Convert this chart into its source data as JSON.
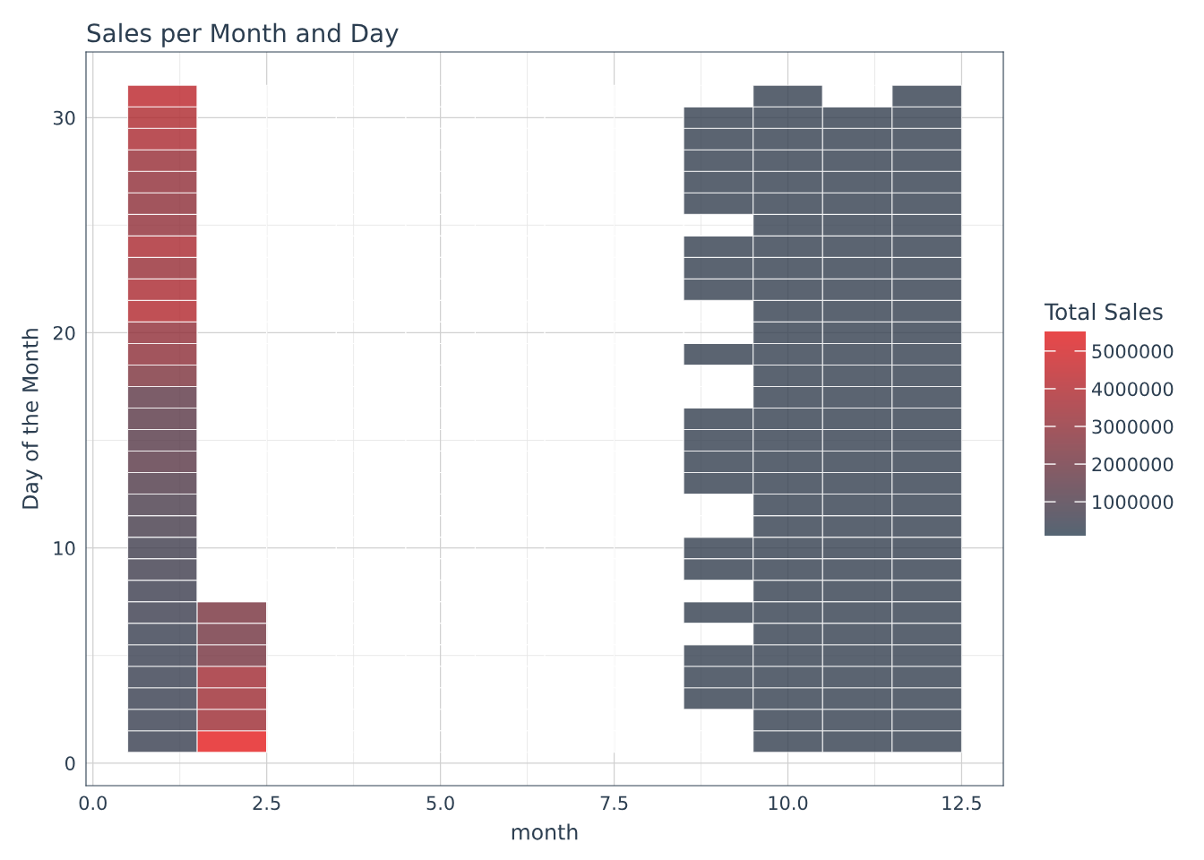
{
  "chart_data": {
    "type": "heatmap",
    "title": "Sales per Month and Day",
    "xlabel": "month",
    "ylabel": "Day of the Month",
    "clabel": "Total Sales",
    "x": [
      1,
      2,
      3,
      4,
      5,
      6,
      7,
      8,
      9,
      10,
      11,
      12
    ],
    "y": [
      31,
      30,
      29,
      28,
      27,
      26,
      25,
      24,
      23,
      22,
      21,
      20,
      19,
      18,
      17,
      16,
      15,
      14,
      13,
      12,
      11,
      10,
      9,
      8,
      7,
      6,
      5,
      4,
      3,
      2,
      1
    ],
    "cells": [
      [
        4300000,
        null,
        null,
        null,
        null,
        null,
        null,
        null,
        null,
        300000,
        null,
        300000
      ],
      [
        3900000,
        null,
        null,
        null,
        null,
        null,
        null,
        null,
        300000,
        300000,
        300000,
        300000
      ],
      [
        3800000,
        null,
        null,
        null,
        null,
        null,
        null,
        null,
        300000,
        300000,
        300000,
        300000
      ],
      [
        3200000,
        null,
        null,
        null,
        null,
        null,
        null,
        null,
        300000,
        300000,
        300000,
        300000
      ],
      [
        3000000,
        null,
        null,
        null,
        null,
        null,
        null,
        null,
        300000,
        300000,
        300000,
        300000
      ],
      [
        2900000,
        null,
        null,
        null,
        null,
        null,
        null,
        null,
        300000,
        300000,
        300000,
        300000
      ],
      [
        3000000,
        null,
        null,
        null,
        null,
        null,
        null,
        null,
        null,
        300000,
        300000,
        300000
      ],
      [
        3800000,
        null,
        null,
        null,
        null,
        null,
        null,
        null,
        300000,
        300000,
        300000,
        300000
      ],
      [
        3200000,
        null,
        null,
        null,
        null,
        null,
        null,
        null,
        300000,
        300000,
        300000,
        300000
      ],
      [
        3800000,
        null,
        null,
        null,
        null,
        null,
        null,
        null,
        300000,
        300000,
        300000,
        300000
      ],
      [
        4000000,
        null,
        null,
        null,
        null,
        null,
        null,
        null,
        null,
        300000,
        300000,
        300000
      ],
      [
        3000000,
        null,
        null,
        null,
        null,
        null,
        null,
        null,
        null,
        300000,
        300000,
        300000
      ],
      [
        2900000,
        null,
        null,
        null,
        null,
        null,
        null,
        null,
        300000,
        300000,
        300000,
        300000
      ],
      [
        2400000,
        null,
        null,
        null,
        null,
        null,
        null,
        null,
        null,
        300000,
        300000,
        300000
      ],
      [
        1500000,
        null,
        null,
        null,
        null,
        null,
        null,
        null,
        null,
        300000,
        300000,
        300000
      ],
      [
        1400000,
        null,
        null,
        null,
        null,
        null,
        null,
        null,
        300000,
        300000,
        300000,
        300000
      ],
      [
        1300000,
        null,
        null,
        null,
        null,
        null,
        null,
        null,
        300000,
        300000,
        300000,
        300000
      ],
      [
        1400000,
        null,
        null,
        null,
        null,
        null,
        null,
        null,
        300000,
        300000,
        300000,
        300000
      ],
      [
        1100000,
        null,
        null,
        null,
        null,
        null,
        null,
        null,
        300000,
        300000,
        300000,
        300000
      ],
      [
        900000,
        null,
        null,
        null,
        null,
        null,
        null,
        null,
        null,
        300000,
        300000,
        300000
      ],
      [
        800000,
        null,
        null,
        null,
        null,
        null,
        null,
        null,
        null,
        300000,
        300000,
        300000
      ],
      [
        600000,
        null,
        null,
        null,
        null,
        null,
        null,
        null,
        300000,
        300000,
        300000,
        300000
      ],
      [
        600000,
        null,
        null,
        null,
        null,
        null,
        null,
        null,
        300000,
        300000,
        300000,
        300000
      ],
      [
        500000,
        null,
        null,
        null,
        null,
        null,
        null,
        null,
        null,
        300000,
        300000,
        300000
      ],
      [
        500000,
        2300000,
        null,
        null,
        null,
        null,
        null,
        null,
        300000,
        300000,
        300000,
        300000
      ],
      [
        400000,
        2100000,
        null,
        null,
        null,
        null,
        null,
        null,
        null,
        300000,
        300000,
        300000
      ],
      [
        400000,
        2200000,
        null,
        null,
        null,
        null,
        null,
        null,
        300000,
        300000,
        300000,
        300000
      ],
      [
        400000,
        3500000,
        null,
        null,
        null,
        null,
        null,
        null,
        300000,
        300000,
        300000,
        300000
      ],
      [
        400000,
        3400000,
        null,
        null,
        null,
        null,
        null,
        null,
        300000,
        300000,
        300000,
        300000
      ],
      [
        400000,
        3400000,
        null,
        null,
        null,
        null,
        null,
        null,
        null,
        300000,
        300000,
        300000
      ],
      [
        400000,
        5500000,
        null,
        null,
        null,
        null,
        null,
        null,
        null,
        300000,
        300000,
        300000
      ]
    ],
    "xlim": [
      -0.1,
      13.1
    ],
    "xticks": [
      {
        "value": 0,
        "label": "0.0"
      },
      2.5,
      {
        "value": 5,
        "label": "5.0"
      },
      7.5,
      {
        "value": 10,
        "label": "10.0"
      },
      12.5
    ],
    "ylim": [
      -1.05,
      33.05
    ],
    "yticks": [
      0,
      10,
      20,
      30
    ],
    "clim": [
      100000,
      5520000
    ],
    "cticks": [
      1000000,
      2000000,
      3000000,
      4000000,
      5000000
    ],
    "grid": true
  }
}
